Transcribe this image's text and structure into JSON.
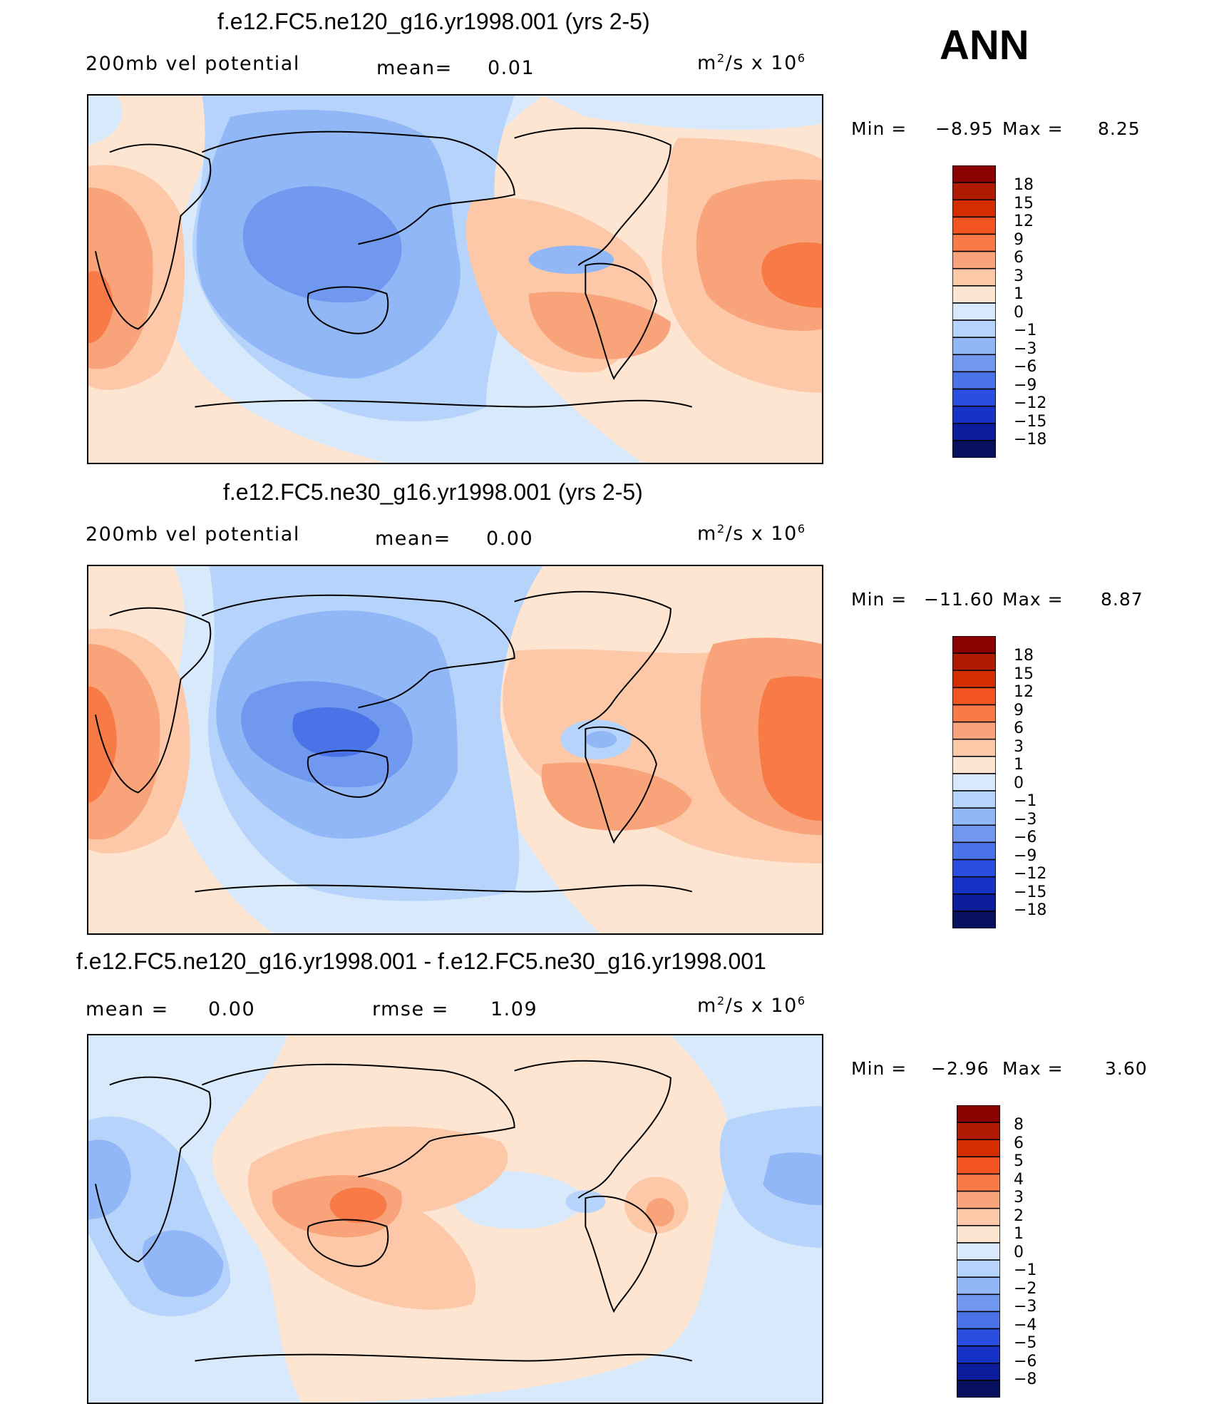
{
  "season": "ANN",
  "units_base": "m",
  "units_sup": "2",
  "units_tail": "/s x 10",
  "units_exp": "6",
  "panels": [
    {
      "title": "f.e12.FC5.ne120_g16.yr1998.001 (yrs 2-5)",
      "left_label": "200mb vel potential",
      "middle_label": "mean=",
      "middle_value": "0.01",
      "minmax_min_label": "Min =",
      "min": "−8.95",
      "minmax_max_label": "Max =",
      "max": "8.25",
      "legend_levels": [
        "18",
        "15",
        "12",
        "9",
        "6",
        "3",
        "1",
        "0",
        "−1",
        "−3",
        "−6",
        "−9",
        "−12",
        "−15",
        "−18"
      ]
    },
    {
      "title": "f.e12.FC5.ne30_g16.yr1998.001 (yrs 2-5)",
      "left_label": "200mb vel potential",
      "middle_label": "mean=",
      "middle_value": "0.00",
      "minmax_min_label": "Min =",
      "min": "−11.60",
      "minmax_max_label": "Max =",
      "max": "8.87",
      "legend_levels": [
        "18",
        "15",
        "12",
        "9",
        "6",
        "3",
        "1",
        "0",
        "−1",
        "−3",
        "−6",
        "−9",
        "−12",
        "−15",
        "−18"
      ]
    },
    {
      "title": "f.e12.FC5.ne120_g16.yr1998.001 - f.e12.FC5.ne30_g16.yr1998.001",
      "left_label": "mean =",
      "left_value": "0.00",
      "middle_label": "rmse =",
      "middle_value": "1.09",
      "minmax_min_label": "Min =",
      "min": "−2.96",
      "minmax_max_label": "Max =",
      "max": "3.60",
      "legend_levels": [
        "8",
        "6",
        "5",
        "4",
        "3",
        "2",
        "1",
        "0",
        "−1",
        "−2",
        "−3",
        "−4",
        "−5",
        "−6",
        "−8"
      ]
    }
  ],
  "colors": {
    "scale": [
      "#8b0000",
      "#b01a00",
      "#d42e00",
      "#f2541f",
      "#f77a47",
      "#f9a37a",
      "#fcc8a8",
      "#fde5d2",
      "#d7e9fa",
      "#b6d3fb",
      "#92b7f6",
      "#6f98ee",
      "#4a73e8",
      "#2a4fe0",
      "#1733c6",
      "#0c1d9c",
      "#06105f"
    ],
    "land": "#000000"
  }
}
